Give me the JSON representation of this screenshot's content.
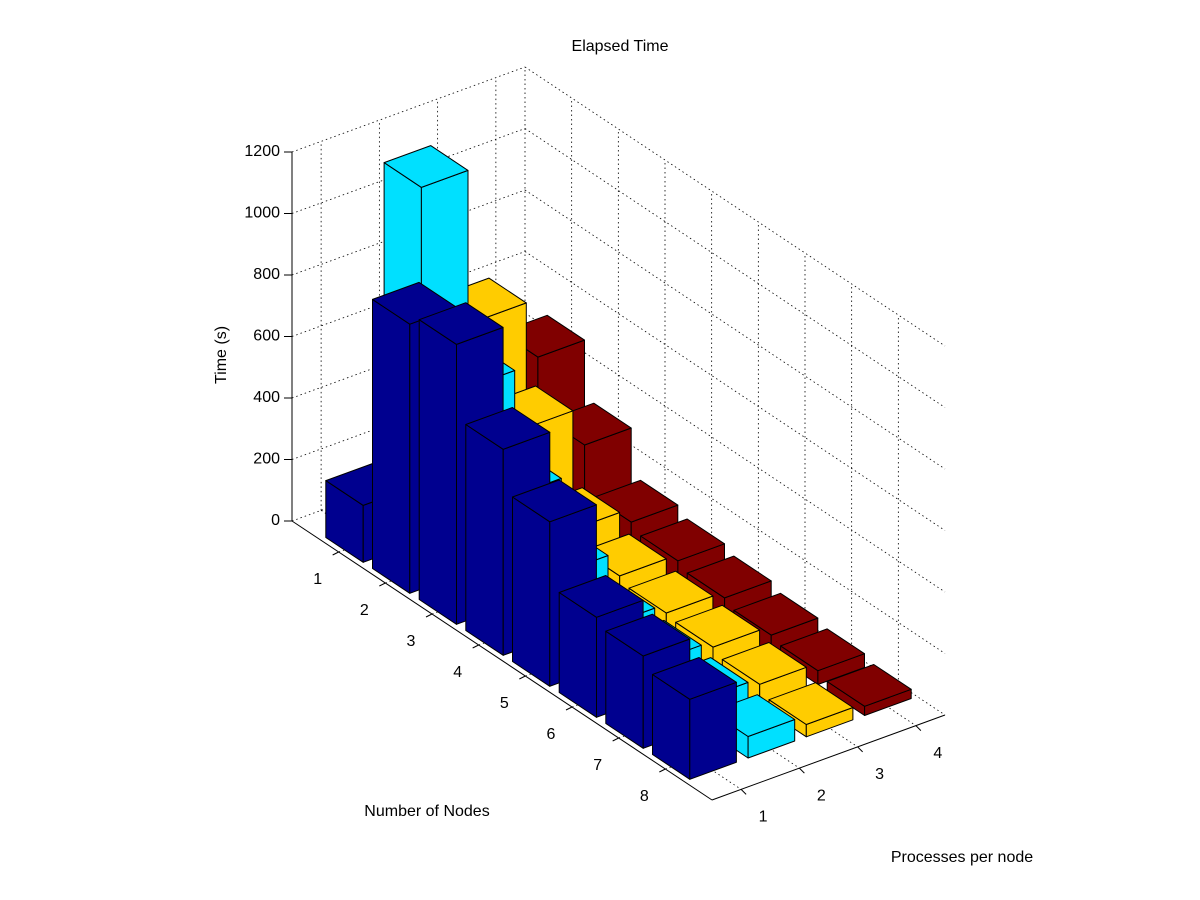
{
  "chart_data": {
    "type": "bar3",
    "title": "Elapsed Time",
    "zlabel": "Time (s)",
    "xlabel": "Number of Nodes",
    "ylabel": "Processes per node",
    "categories": [
      1,
      2,
      3,
      4,
      5,
      6,
      7,
      8
    ],
    "groups": [
      1,
      2,
      3,
      4
    ],
    "xlim": [
      0,
      9
    ],
    "ylim": [
      0.5,
      4.5
    ],
    "zlim": [
      0,
      1200
    ],
    "zticks": [
      0,
      200,
      400,
      600,
      800,
      1000,
      1200
    ],
    "grid": true,
    "series": [
      {
        "color": "#00008f",
        "values": [
          185,
          875,
          910,
          670,
          535,
          325,
          300,
          260
        ]
      },
      {
        "color": "#00e0ff",
        "values": [
          1150,
          600,
          350,
          200,
          130,
          110,
          90,
          70
        ]
      },
      {
        "color": "#ffcc00",
        "values": [
          650,
          400,
          170,
          120,
          100,
          90,
          70,
          40
        ]
      },
      {
        "color": "#800000",
        "values": [
          460,
          275,
          125,
          100,
          80,
          60,
          45,
          30
        ]
      }
    ]
  }
}
